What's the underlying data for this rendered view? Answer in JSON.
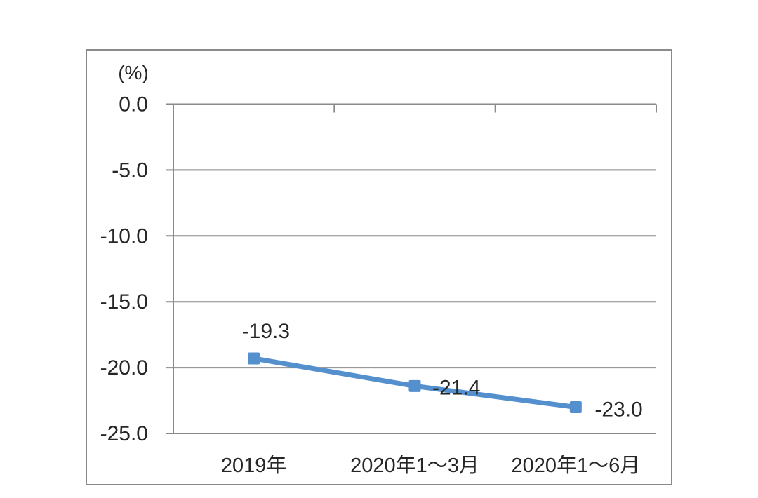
{
  "chart_data": {
    "type": "line",
    "title": "",
    "ylabel": "(%)",
    "xlabel": "",
    "categories": [
      "2019年",
      "2020年1～3月",
      "2020年1～6月"
    ],
    "values": [
      -19.3,
      -21.4,
      -23.0
    ],
    "data_labels": [
      "-19.3",
      "-21.4",
      "-23.0"
    ],
    "ylim": [
      -25,
      0
    ],
    "yticks": [
      0,
      -5,
      -10,
      -15,
      -20,
      -25
    ],
    "ytick_labels": [
      "0.0",
      "-5.0",
      "-10.0",
      "-15.0",
      "-20.0",
      "-25.0"
    ],
    "grid": true,
    "legend": false,
    "marker": "square",
    "colors": {
      "line": "#5590CE",
      "marker": "#5590CE",
      "grid": "#8a8a8a",
      "frame": "#8a8a8a",
      "text": "#262626",
      "background": "#ffffff"
    }
  }
}
